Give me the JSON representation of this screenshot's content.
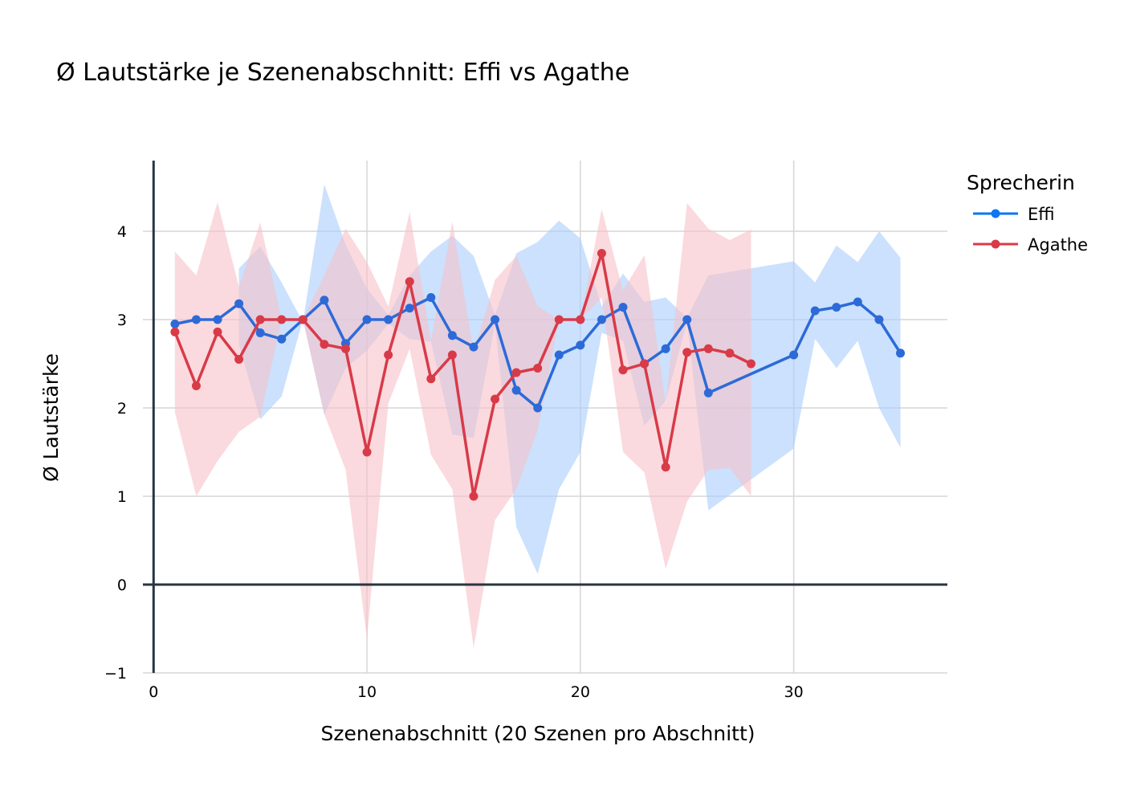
{
  "chart_data": {
    "type": "line",
    "title": "Ø Lautstärke je Szenenabschnitt: Effi vs Agathe",
    "xlabel": "Szenenabschnitt (20 Szenen pro Abschnitt)",
    "ylabel": "Ø Lautstärke",
    "xlim": [
      -0.5,
      37.2
    ],
    "ylim": [
      -1,
      4.8
    ],
    "x_ticks": [
      0,
      10,
      20,
      30
    ],
    "y_ticks": [
      -1,
      0,
      1,
      2,
      3,
      4
    ],
    "x_tick_labels": [
      "0",
      "10",
      "20",
      "30"
    ],
    "y_tick_labels": [
      "−1",
      "0",
      "1",
      "2",
      "3",
      "4"
    ],
    "grid": true,
    "legend": {
      "title": "Sprecherin",
      "position": "top-right"
    },
    "series": [
      {
        "name": "Effi",
        "color": "#2d6ad8",
        "marker_color": "#0d76f2",
        "band_color": "#a8cdfb",
        "x": [
          1,
          2,
          3,
          4,
          5,
          6,
          7,
          8,
          9,
          10,
          11,
          12,
          13,
          14,
          15,
          16,
          17,
          18,
          19,
          20,
          21,
          22,
          23,
          24,
          25,
          26,
          30,
          31,
          32,
          33,
          34,
          35
        ],
        "values": [
          2.95,
          3.0,
          3.0,
          3.18,
          2.85,
          2.78,
          3.0,
          3.22,
          2.73,
          3.0,
          3.0,
          3.13,
          3.25,
          2.82,
          2.69,
          3.0,
          2.2,
          2.0,
          2.6,
          2.71,
          3.0,
          3.14,
          2.5,
          2.67,
          3.0,
          2.17,
          2.6,
          3.1,
          3.14,
          3.2,
          3.0,
          2.62
        ],
        "band_upper": [
          null,
          null,
          null,
          3.58,
          3.83,
          3.42,
          2.97,
          4.53,
          3.85,
          3.35,
          3.05,
          3.5,
          3.77,
          3.95,
          3.72,
          3.05,
          3.75,
          3.88,
          4.12,
          3.92,
          3.15,
          3.52,
          3.2,
          3.25,
          3.02,
          3.5,
          3.66,
          3.42,
          3.84,
          3.65,
          4.0,
          3.7
        ],
        "band_lower": [
          null,
          null,
          null,
          2.72,
          1.87,
          2.13,
          3.0,
          1.92,
          2.45,
          2.65,
          2.95,
          2.78,
          2.75,
          1.7,
          1.66,
          2.95,
          0.65,
          0.12,
          1.08,
          1.5,
          2.85,
          2.76,
          1.8,
          2.08,
          2.97,
          0.84,
          1.54,
          2.78,
          2.45,
          2.76,
          2.0,
          1.55
        ]
      },
      {
        "name": "Agathe",
        "color": "#d93a48",
        "marker_color": "#d93a48",
        "band_color": "#f6c2c8",
        "x": [
          1,
          2,
          3,
          4,
          5,
          6,
          7,
          8,
          9,
          10,
          11,
          12,
          13,
          14,
          15,
          16,
          17,
          18,
          19,
          20,
          21,
          22,
          23,
          24,
          25,
          26,
          27,
          28
        ],
        "values": [
          2.86,
          2.25,
          2.86,
          2.55,
          3.0,
          3.0,
          3.0,
          2.72,
          2.67,
          1.5,
          2.6,
          3.43,
          2.33,
          2.6,
          1.0,
          2.1,
          2.4,
          2.45,
          3.0,
          3.0,
          3.75,
          2.43,
          2.5,
          1.33,
          2.63,
          2.67,
          2.62,
          2.5
        ],
        "band_upper": [
          3.77,
          3.5,
          4.33,
          3.37,
          4.1,
          3.0,
          3.0,
          3.5,
          4.03,
          3.65,
          3.15,
          4.22,
          2.75,
          4.11,
          2.62,
          3.45,
          3.72,
          3.15,
          3.0,
          3.0,
          4.25,
          3.33,
          3.73,
          2.05,
          4.32,
          4.03,
          3.9,
          4.02
        ],
        "band_lower": [
          1.95,
          1.0,
          1.4,
          1.73,
          1.9,
          3.0,
          3.0,
          1.93,
          1.3,
          -0.62,
          2.05,
          2.67,
          1.47,
          1.08,
          -0.72,
          0.73,
          1.08,
          1.75,
          3.0,
          3.0,
          3.25,
          1.5,
          1.27,
          0.18,
          0.94,
          1.3,
          1.32,
          1.0
        ]
      }
    ]
  }
}
